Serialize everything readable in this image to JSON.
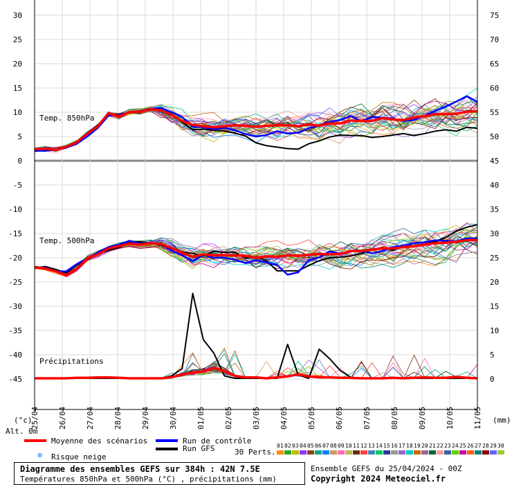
{
  "chart_data": {
    "type": "line",
    "title": "Diagramme des ensembles GEFS sur 384h : 42N 7.5E",
    "subtitle": "Températures 850hPa et 500hPa (°C) , précipitations (mm)",
    "run_info": "Ensemble GEFS du 25/04/2024 - 00Z",
    "copyright": "Copyright 2024 Meteociel.fr",
    "left_axis_label": "(°c)",
    "right_axis_label": "(mm)",
    "alt_label": "Alt. 0m",
    "left_ticks": [
      "30",
      "25",
      "20",
      "15",
      "10",
      "5",
      "0",
      "-5",
      "-10",
      "-15",
      "-20",
      "-25",
      "-30",
      "-35",
      "-40",
      "-45"
    ],
    "right_ticks": [
      "75",
      "70",
      "65",
      "60",
      "55",
      "50",
      "45",
      "40",
      "35",
      "30",
      "25",
      "20",
      "15",
      "10",
      "5",
      "0"
    ],
    "x_labels": [
      "25/04",
      "26/04",
      "27/04",
      "28/04",
      "29/04",
      "30/04",
      "01/05",
      "02/05",
      "03/05",
      "04/05",
      "05/05",
      "06/05",
      "07/05",
      "08/05",
      "09/05",
      "10/05",
      "11/05"
    ],
    "panel_labels": {
      "t850": "Temp. 850hPa",
      "t500": "Temp. 500hPa",
      "precip": "Précipitations"
    },
    "series_mean_850": [
      2.4,
      2.5,
      2.2,
      2.9,
      3.8,
      5.6,
      7.1,
      9.8,
      9.2,
      10.0,
      10.1,
      10.6,
      10.4,
      9.4,
      8.2,
      7.4,
      7.1,
      6.9,
      7.1,
      7.3,
      7.2,
      7.0,
      7.2,
      7.3,
      7.3,
      7.1,
      7.5,
      7.2,
      7.7,
      7.7,
      8.3,
      8.2,
      8.2,
      8.8,
      8.5,
      8.4,
      8.9,
      9.2,
      9.6,
      9.6,
      9.7,
      10.1,
      10.2
    ],
    "series_mean_500": [
      -22.0,
      -22.2,
      -22.8,
      -23.6,
      -22.3,
      -20.1,
      -19.3,
      -18.1,
      -17.6,
      -17.1,
      -17.3,
      -17.0,
      -17.2,
      -18.0,
      -19.0,
      -19.8,
      -19.3,
      -19.5,
      -19.5,
      -19.5,
      -19.6,
      -20.0,
      -19.7,
      -19.8,
      -19.5,
      -19.6,
      -19.4,
      -19.2,
      -19.3,
      -19.2,
      -18.6,
      -18.6,
      -18.3,
      -18.1,
      -18.1,
      -17.8,
      -17.6,
      -17.3,
      -17.0,
      -16.9,
      -16.7,
      -16.4,
      -16.3
    ],
    "series_mean_precip": [
      0,
      0,
      0,
      0,
      0.1,
      0.1,
      0.2,
      0.2,
      0.1,
      0,
      0,
      0,
      0,
      0.2,
      0.8,
      1.2,
      1.4,
      2.1,
      1.5,
      0.5,
      0.2,
      0.2,
      0,
      0.2,
      0.4,
      0.8,
      0.4,
      0.2,
      0.2,
      0.1,
      0.1,
      0,
      0,
      0,
      0.1,
      0,
      0.1,
      0.2,
      0.1,
      0.1,
      0.3,
      0.1,
      0
    ],
    "series_control_850": [
      2.0,
      2.1,
      2.2,
      2.7,
      3.5,
      5.0,
      6.8,
      9.3,
      9.5,
      9.9,
      10.2,
      10.7,
      10.9,
      10.0,
      9.0,
      7.0,
      6.9,
      6.5,
      6.8,
      6.3,
      5.5,
      5.0,
      5.3,
      6.1,
      5.6,
      5.8,
      6.7,
      7.3,
      8.0,
      8.4,
      9.2,
      8.1,
      9.0,
      8.9,
      8.7,
      8.2,
      8.4,
      9.3,
      10.3,
      11.2,
      12.2,
      13.3,
      12.1
    ],
    "series_control_500": [
      -22.1,
      -22.0,
      -22.8,
      -22.8,
      -21.3,
      -20.1,
      -18.9,
      -17.8,
      -17.3,
      -16.5,
      -17.1,
      -16.9,
      -17.1,
      -18.6,
      -19.5,
      -20.7,
      -19.4,
      -20.0,
      -20.0,
      -20.4,
      -21.1,
      -20.5,
      -21.0,
      -21.5,
      -23.5,
      -23.0,
      -20.5,
      -19.9,
      -18.7,
      -19.2,
      -18.7,
      -18.6,
      -19.1,
      -18.6,
      -17.8,
      -17.5,
      -17.0,
      -16.8,
      -16.4,
      -16.5,
      -16.6,
      -16.0,
      -16.0
    ],
    "series_gfs_850": [
      2.1,
      2.0,
      2.3,
      2.8,
      3.8,
      5.7,
      7.4,
      9.6,
      9.6,
      9.9,
      10.3,
      10.7,
      10.5,
      9.6,
      7.9,
      6.4,
      6.5,
      6.3,
      6.1,
      5.7,
      5.1,
      3.7,
      3.1,
      2.8,
      2.5,
      2.4,
      3.5,
      4.1,
      4.9,
      5.3,
      5.2,
      5.2,
      4.8,
      5.0,
      5.3,
      5.6,
      5.2,
      5.6,
      6.1,
      6.4,
      6.1,
      6.9,
      6.7
    ],
    "series_gfs_500": [
      -22.2,
      -21.8,
      -22.4,
      -23.1,
      -21.5,
      -20.4,
      -19.1,
      -18.5,
      -17.9,
      -16.8,
      -16.7,
      -17.0,
      -17.4,
      -18.2,
      -18.8,
      -19.1,
      -19.6,
      -18.7,
      -18.9,
      -18.9,
      -20.1,
      -19.8,
      -20.6,
      -22.7,
      -22.7,
      -22.7,
      -21.6,
      -20.6,
      -20.0,
      -19.9,
      -19.6,
      -19.1,
      -18.3,
      -17.9,
      -18.5,
      -17.6,
      -17.5,
      -17.2,
      -16.7,
      -15.8,
      -14.5,
      -13.7,
      -13.2
    ],
    "series_gfs_precip": [
      0,
      0,
      0,
      0,
      0,
      0,
      0,
      0,
      0,
      0,
      0,
      0,
      0,
      0.5,
      2.0,
      17.5,
      8.0,
      5.2,
      0.5,
      0,
      0,
      0,
      0,
      0,
      7.0,
      0.7,
      0,
      6.0,
      4.0,
      1.6,
      0.2,
      0,
      0,
      0,
      0,
      0,
      0,
      0,
      0,
      0,
      0,
      0,
      0
    ]
  },
  "legend": {
    "mean": "Moyenne des scénarios",
    "control": "Run de contrôle",
    "gfs": "Run GFS",
    "snow": "Risque neige",
    "perts": "30 Perts.",
    "pert_numbers": [
      "01",
      "02",
      "03",
      "04",
      "05",
      "06",
      "07",
      "08",
      "09",
      "10",
      "11",
      "12",
      "13",
      "14",
      "15",
      "16",
      "17",
      "18",
      "19",
      "20",
      "21",
      "22",
      "23",
      "24",
      "25",
      "26",
      "27",
      "28",
      "29",
      "30"
    ],
    "colors": {
      "mean": "#ff0000",
      "control": "#0000ff",
      "gfs": "#000000",
      "snow": "#1e90ff"
    },
    "pert_colors": [
      "#ff8c00",
      "#22aa22",
      "#bbbb00",
      "#9b30ff",
      "#8b4513",
      "#00aa88",
      "#0080ff",
      "#cc9966",
      "#ff69b4",
      "#bbbb55",
      "#663300",
      "#ff4040",
      "#4682b4",
      "#00cc66",
      "#333399",
      "#999999",
      "#9966cc",
      "#00cccc",
      "#cc6600",
      "#996699",
      "#006633",
      "#ff9999",
      "#336699",
      "#66cc00",
      "#cc0099",
      "#ff6600",
      "#008080",
      "#800000",
      "#6666ff",
      "#99cc33"
    ]
  }
}
